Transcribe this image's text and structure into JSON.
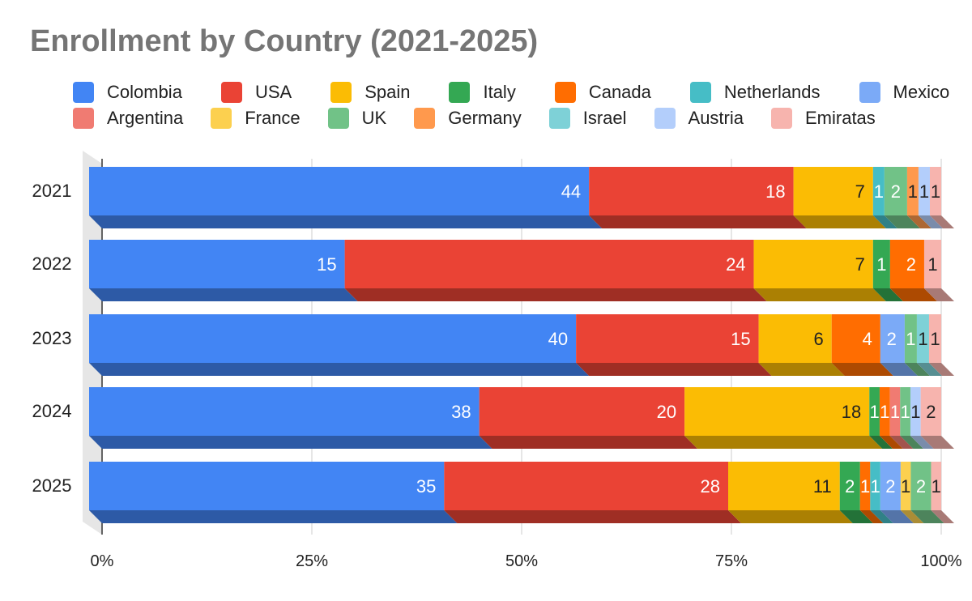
{
  "chart_data": {
    "type": "bar",
    "orientation": "horizontal",
    "stacked": "percent",
    "title": "Enrollment by Country (2021-2025)",
    "categories": [
      "2021",
      "2022",
      "2023",
      "2024",
      "2025"
    ],
    "x_ticks": [
      "0%",
      "25%",
      "50%",
      "75%",
      "100%"
    ],
    "xlim": [
      0,
      100
    ],
    "legend_position": "top",
    "series": [
      {
        "name": "Colombia",
        "color": "#4285f4",
        "values": [
          44,
          15,
          40,
          38,
          35
        ]
      },
      {
        "name": "USA",
        "color": "#ea4335",
        "values": [
          18,
          24,
          15,
          20,
          28
        ]
      },
      {
        "name": "Spain",
        "color": "#fbbc04",
        "values": [
          7,
          7,
          6,
          18,
          11
        ]
      },
      {
        "name": "Italy",
        "color": "#34a853",
        "values": [
          0,
          1,
          0,
          1,
          2
        ]
      },
      {
        "name": "Canada",
        "color": "#ff6d01",
        "values": [
          0,
          2,
          4,
          1,
          1
        ]
      },
      {
        "name": "Netherlands",
        "color": "#46bdc6",
        "values": [
          1,
          0,
          0,
          0,
          1
        ]
      },
      {
        "name": "Mexico",
        "color": "#7baaf7",
        "values": [
          0,
          0,
          2,
          0,
          2
        ]
      },
      {
        "name": "Argentina",
        "color": "#f07b72",
        "values": [
          0,
          0,
          0,
          1,
          0
        ]
      },
      {
        "name": "France",
        "color": "#fcd04f",
        "values": [
          0,
          0,
          0,
          0,
          1
        ]
      },
      {
        "name": "UK",
        "color": "#71c287",
        "values": [
          2,
          0,
          1,
          1,
          2
        ]
      },
      {
        "name": "Germany",
        "color": "#ff994d",
        "values": [
          1,
          0,
          0,
          0,
          0
        ]
      },
      {
        "name": "Israel",
        "color": "#7ed1d7",
        "values": [
          0,
          0,
          1,
          0,
          0
        ]
      },
      {
        "name": "Austria",
        "color": "#b3cefb",
        "values": [
          1,
          0,
          0,
          1,
          0
        ]
      },
      {
        "name": "Emiratas",
        "color": "#f7b4ae",
        "values": [
          1,
          1,
          1,
          2,
          1
        ]
      }
    ]
  }
}
